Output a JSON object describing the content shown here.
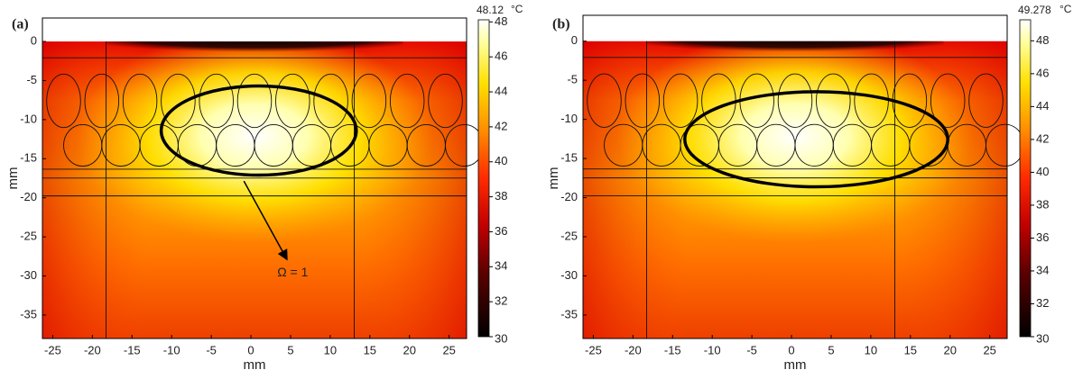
{
  "chart_data": [
    {
      "type": "heatmap",
      "panel_label": "(a)",
      "xlabel": "mm",
      "ylabel": "mm",
      "xlim": [
        -26.3,
        27.2
      ],
      "ylim": [
        -38,
        3
      ],
      "xticks": [
        -25,
        -20,
        -15,
        -10,
        -5,
        0,
        5,
        10,
        15,
        20,
        25
      ],
      "yticks": [
        0,
        -5,
        -10,
        -15,
        -20,
        -25,
        -30,
        -35
      ],
      "colorbar": {
        "max": 48.12,
        "unit": "°C",
        "lim": [
          30,
          48.12
        ],
        "ticks": [
          30,
          32,
          34,
          36,
          38,
          40,
          42,
          44,
          46,
          48
        ]
      },
      "annotation": "Ω = 1"
    },
    {
      "type": "heatmap",
      "panel_label": "(b)",
      "xlabel": "mm",
      "ylabel": "mm",
      "xlim": [
        -26.3,
        27.2
      ],
      "ylim": [
        -38,
        3.3
      ],
      "xticks": [
        -25,
        -20,
        -15,
        -10,
        -5,
        0,
        5,
        10,
        15,
        20,
        25
      ],
      "yticks": [
        0,
        -5,
        -10,
        -15,
        -20,
        -25,
        -30,
        -35
      ],
      "colorbar": {
        "max": 49.278,
        "unit": "°C",
        "lim": [
          30,
          49.278
        ],
        "ticks": [
          30,
          32,
          34,
          36,
          38,
          40,
          42,
          44,
          46,
          48
        ]
      }
    }
  ]
}
